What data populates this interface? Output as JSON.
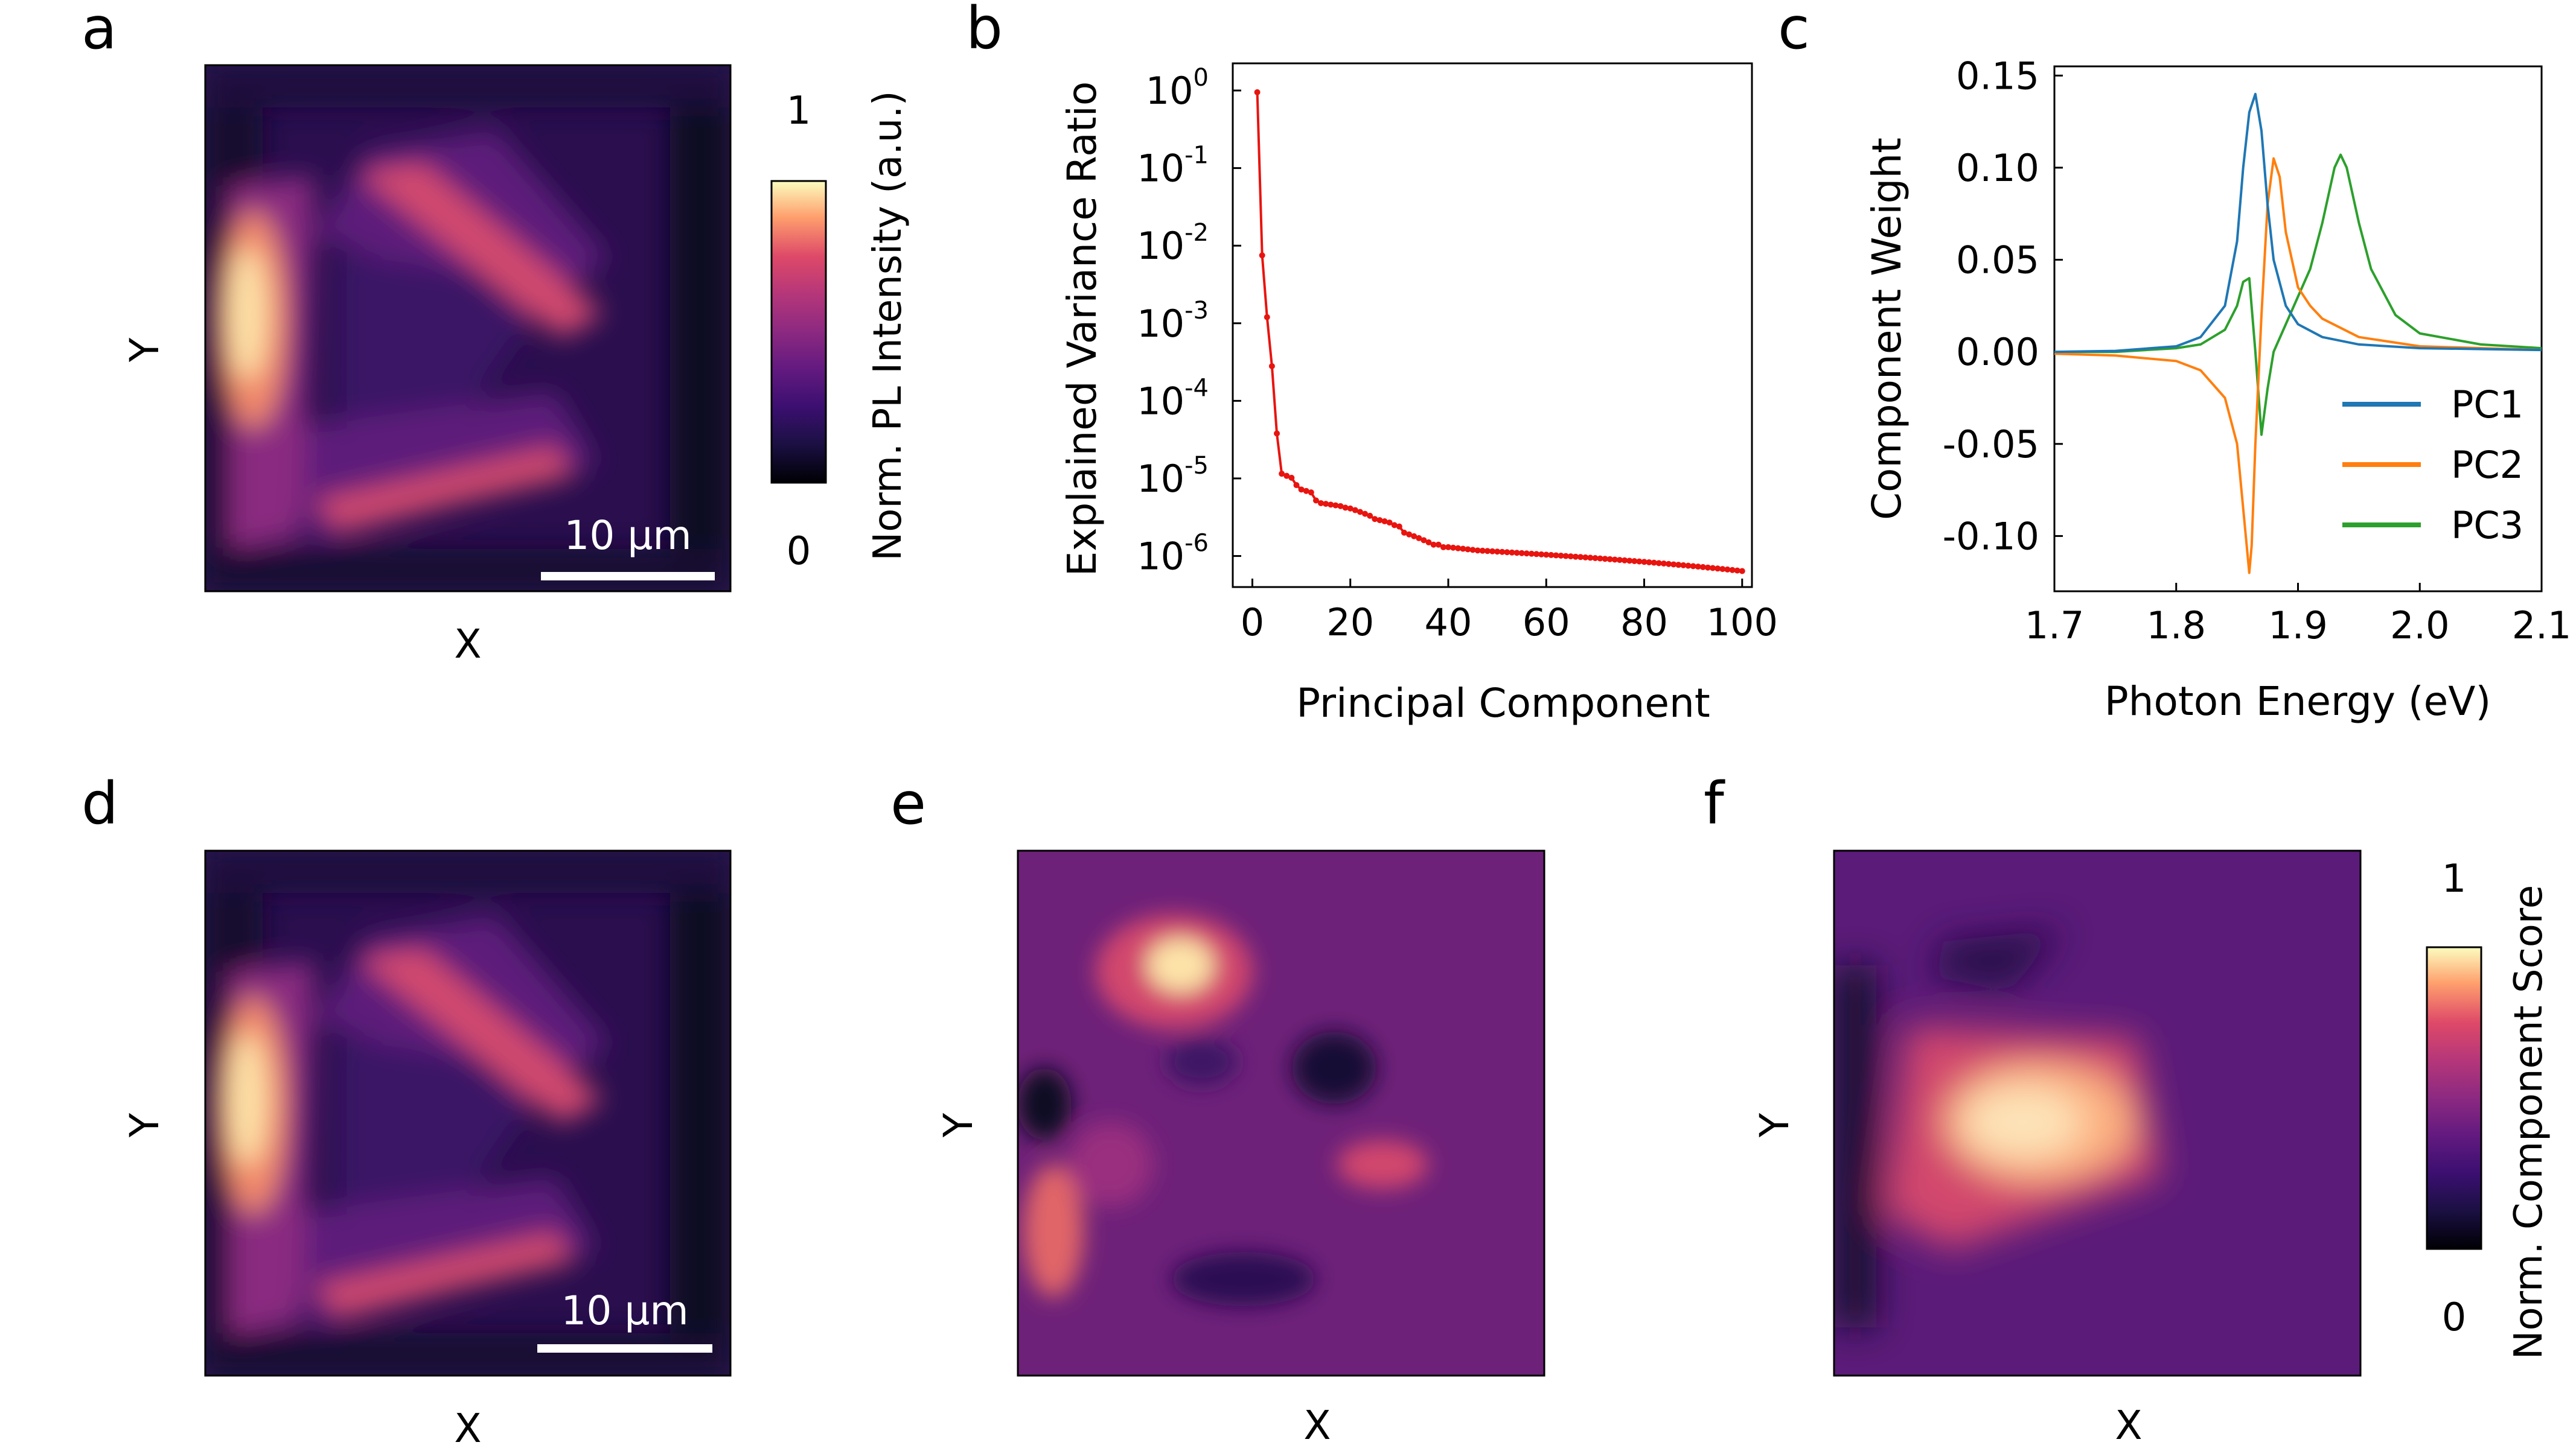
{
  "panels": {
    "a": {
      "label": "a",
      "xlabel": "X",
      "ylabel": "Y",
      "scalebar": "10 μm",
      "colorbar": {
        "title": "Norm. PL Intensity (a.u.)",
        "max_label": "1",
        "min_label": "0"
      }
    },
    "d": {
      "label": "d",
      "xlabel": "X",
      "ylabel": "Y",
      "scalebar": "10 μm"
    },
    "e": {
      "label": "e",
      "xlabel": "X",
      "ylabel": "Y"
    },
    "f": {
      "label": "f",
      "xlabel": "X",
      "ylabel": "Y",
      "colorbar": {
        "title": "Norm. Component Score",
        "max_label": "1",
        "min_label": "0"
      }
    }
  },
  "colormap": "magma",
  "colors": {
    "pc1": "#1f77b4",
    "pc2": "#ff7f0e",
    "pc3": "#2ca02c",
    "variance_line": "#e8140f"
  },
  "chart_data": [
    {
      "panel": "b",
      "label": "b",
      "type": "line",
      "scale": "log-y",
      "title": "",
      "xlabel": "Principal Component",
      "ylabel": "Explained Variance Ratio",
      "xlim": [
        -4,
        102
      ],
      "ylim_log10": [
        -6.4,
        0.35
      ],
      "xticks": [
        0,
        20,
        40,
        60,
        80,
        100
      ],
      "yticks": [
        {
          "base": "10",
          "exp": "0",
          "log": 0
        },
        {
          "base": "10",
          "exp": "-1",
          "log": -1
        },
        {
          "base": "10",
          "exp": "-2",
          "log": -2
        },
        {
          "base": "10",
          "exp": "-3",
          "log": -3
        },
        {
          "base": "10",
          "exp": "-4",
          "log": -4
        },
        {
          "base": "10",
          "exp": "-5",
          "log": -5
        },
        {
          "base": "10",
          "exp": "-6",
          "log": -6
        }
      ],
      "x": [
        1,
        2,
        3,
        4,
        5,
        6,
        7,
        8,
        9,
        10,
        11,
        12,
        13,
        14,
        15,
        16,
        17,
        18,
        19,
        20,
        21,
        22,
        23,
        24,
        25,
        26,
        27,
        28,
        29,
        30,
        31,
        32,
        33,
        34,
        35,
        36,
        37,
        38,
        39,
        40,
        41,
        42,
        43,
        44,
        45,
        46,
        47,
        48,
        49,
        50,
        51,
        52,
        53,
        54,
        55,
        56,
        57,
        58,
        59,
        60,
        61,
        62,
        63,
        64,
        65,
        66,
        67,
        68,
        69,
        70,
        71,
        72,
        73,
        74,
        75,
        76,
        77,
        78,
        79,
        80,
        81,
        82,
        83,
        84,
        85,
        86,
        87,
        88,
        89,
        90,
        91,
        92,
        93,
        94,
        95,
        96,
        97,
        98,
        99,
        100
      ],
      "values": [
        0.95,
        0.0075,
        0.0012,
        0.00028,
        3.8e-05,
        1.15e-05,
        1.08e-05,
        1.02e-05,
        8.2e-06,
        7.2e-06,
        6.9e-06,
        6.6e-06,
        5.2e-06,
        4.8e-06,
        4.7e-06,
        4.6e-06,
        4.5e-06,
        4.4e-06,
        4.2e-06,
        4.1e-06,
        3.9e-06,
        3.7e-06,
        3.5e-06,
        3.3e-06,
        3e-06,
        2.9e-06,
        2.8e-06,
        2.7e-06,
        2.5e-06,
        2.4e-06,
        2e-06,
        1.9e-06,
        1.8e-06,
        1.7e-06,
        1.6e-06,
        1.5e-06,
        1.4e-06,
        1.4e-06,
        1.3e-06,
        1.3e-06,
        1.28e-06,
        1.26e-06,
        1.24e-06,
        1.22e-06,
        1.2e-06,
        1.18e-06,
        1.17e-06,
        1.16e-06,
        1.15e-06,
        1.14e-06,
        1.13e-06,
        1.12e-06,
        1.11e-06,
        1.1e-06,
        1.09e-06,
        1.08e-06,
        1.07e-06,
        1.06e-06,
        1.05e-06,
        1.04e-06,
        1.03e-06,
        1.02e-06,
        1.01e-06,
        1e-06,
        9.9e-07,
        9.8e-07,
        9.7e-07,
        9.6e-07,
        9.5e-07,
        9.4e-07,
        9.3e-07,
        9.2e-07,
        9.1e-07,
        9e-07,
        8.9e-07,
        8.8e-07,
        8.7e-07,
        8.6e-07,
        8.5e-07,
        8.4e-07,
        8.3e-07,
        8.2e-07,
        8.1e-07,
        8e-07,
        7.9e-07,
        7.8e-07,
        7.7e-07,
        7.6e-07,
        7.5e-07,
        7.4e-07,
        7.3e-07,
        7.2e-07,
        7.1e-07,
        7e-07,
        6.9e-07,
        6.8e-07,
        6.7e-07,
        6.6e-07,
        6.5e-07,
        6.4e-07
      ]
    },
    {
      "panel": "c",
      "label": "c",
      "type": "line",
      "title": "",
      "xlabel": "Photon Energy (eV)",
      "ylabel": "Component Weight",
      "xlim": [
        1.7,
        2.1
      ],
      "ylim": [
        -0.13,
        0.155
      ],
      "xticks": [
        "1.7",
        "1.8",
        "1.9",
        "2.0",
        "2.1"
      ],
      "yticks": [
        "0.15",
        "0.10",
        "0.05",
        "0.00",
        "-0.05",
        "-0.10"
      ],
      "legend_position": "lower-right",
      "series": [
        {
          "name": "PC1",
          "x": [
            1.7,
            1.75,
            1.8,
            1.82,
            1.84,
            1.85,
            1.855,
            1.86,
            1.865,
            1.87,
            1.875,
            1.88,
            1.89,
            1.9,
            1.92,
            1.95,
            2.0,
            2.1
          ],
          "values": [
            0.0,
            0.0005,
            0.003,
            0.008,
            0.025,
            0.06,
            0.1,
            0.13,
            0.14,
            0.12,
            0.08,
            0.05,
            0.025,
            0.015,
            0.008,
            0.004,
            0.002,
            0.001
          ]
        },
        {
          "name": "PC2",
          "x": [
            1.7,
            1.75,
            1.8,
            1.82,
            1.84,
            1.85,
            1.855,
            1.86,
            1.862,
            1.865,
            1.87,
            1.875,
            1.88,
            1.885,
            1.89,
            1.9,
            1.91,
            1.92,
            1.95,
            2.0,
            2.1
          ],
          "values": [
            -0.001,
            -0.002,
            -0.005,
            -0.01,
            -0.025,
            -0.05,
            -0.085,
            -0.12,
            -0.105,
            -0.05,
            0.02,
            0.08,
            0.105,
            0.095,
            0.065,
            0.035,
            0.025,
            0.018,
            0.008,
            0.003,
            0.001
          ]
        },
        {
          "name": "PC3",
          "x": [
            1.7,
            1.75,
            1.8,
            1.82,
            1.84,
            1.85,
            1.855,
            1.86,
            1.865,
            1.87,
            1.875,
            1.88,
            1.89,
            1.9,
            1.91,
            1.92,
            1.93,
            1.935,
            1.94,
            1.95,
            1.96,
            1.98,
            2.0,
            2.05,
            2.1
          ],
          "values": [
            0.0,
            0.0,
            0.002,
            0.004,
            0.012,
            0.025,
            0.038,
            0.04,
            0.0,
            -0.045,
            -0.02,
            0.0,
            0.015,
            0.03,
            0.045,
            0.07,
            0.1,
            0.107,
            0.1,
            0.07,
            0.045,
            0.02,
            0.01,
            0.004,
            0.002
          ]
        }
      ]
    }
  ]
}
